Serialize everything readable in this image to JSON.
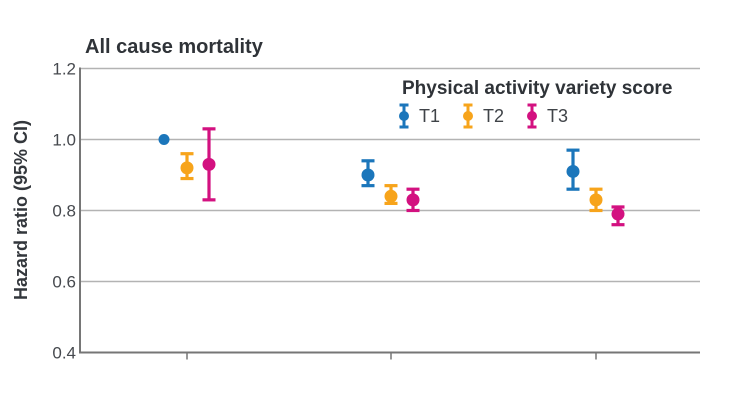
{
  "figure": {
    "background": "#ffffff",
    "gridline_color": "#b3b3b3",
    "axis_color": "#767676",
    "text_color": "#2f3338"
  },
  "chart_data": {
    "type": "scatter",
    "subtype": "errorbar-forest-plot",
    "title": "All cause mortality",
    "xlabel": "",
    "ylabel": "Hazard ratio (95% CI)",
    "ylim": [
      0.4,
      1.2
    ],
    "ytick_labels": [
      "1.2",
      "1.0",
      "0.8",
      "0.6",
      "0.4"
    ],
    "gridline_values": [
      1.2,
      1.0,
      0.8,
      0.6
    ],
    "grid": "horizontal-only",
    "x_groups": 3,
    "x_group_tick_labels": [
      "",
      "",
      ""
    ],
    "legend_title": "Physical activity variety score",
    "legend_position": "top-right-inside",
    "series": [
      {
        "name": "T1",
        "color": "#1b76bb"
      },
      {
        "name": "T2",
        "color": "#f7a41b"
      },
      {
        "name": "T3",
        "color": "#d31180"
      }
    ],
    "groups": [
      {
        "points": [
          {
            "series": "T1",
            "hr": 1.0,
            "ci_low": null,
            "ci_high": null,
            "reference": true
          },
          {
            "series": "T2",
            "hr": 0.92,
            "ci_low": 0.89,
            "ci_high": 0.96,
            "reference": false
          },
          {
            "series": "T3",
            "hr": 0.93,
            "ci_low": 0.83,
            "ci_high": 1.03,
            "reference": false
          }
        ]
      },
      {
        "points": [
          {
            "series": "T1",
            "hr": 0.9,
            "ci_low": 0.87,
            "ci_high": 0.94,
            "reference": false
          },
          {
            "series": "T2",
            "hr": 0.84,
            "ci_low": 0.82,
            "ci_high": 0.87,
            "reference": false
          },
          {
            "series": "T3",
            "hr": 0.83,
            "ci_low": 0.8,
            "ci_high": 0.86,
            "reference": false
          }
        ]
      },
      {
        "points": [
          {
            "series": "T1",
            "hr": 0.91,
            "ci_low": 0.86,
            "ci_high": 0.97,
            "reference": false
          },
          {
            "series": "T2",
            "hr": 0.83,
            "ci_low": 0.8,
            "ci_high": 0.86,
            "reference": false
          },
          {
            "series": "T3",
            "hr": 0.79,
            "ci_low": 0.76,
            "ci_high": 0.81,
            "reference": false
          }
        ]
      }
    ]
  }
}
